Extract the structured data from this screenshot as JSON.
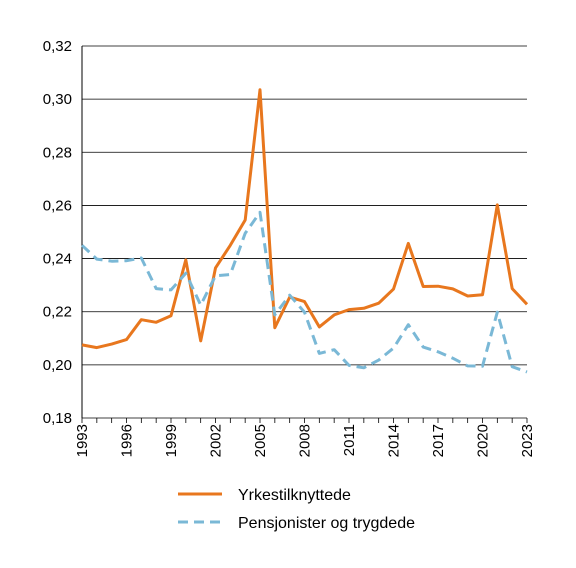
{
  "chart_data": {
    "type": "line",
    "title": "",
    "xlabel": "",
    "ylabel": "",
    "x": [
      1993,
      1994,
      1995,
      1996,
      1997,
      1998,
      1999,
      2000,
      2001,
      2002,
      2003,
      2004,
      2005,
      2006,
      2007,
      2008,
      2009,
      2010,
      2011,
      2012,
      2013,
      2014,
      2015,
      2016,
      2017,
      2018,
      2019,
      2020,
      2021,
      2022,
      2023
    ],
    "xlim": [
      1993,
      2023
    ],
    "ylim": [
      0.18,
      0.32
    ],
    "y_ticks": [
      {
        "value": 0.18,
        "label": "0,18"
      },
      {
        "value": 0.2,
        "label": "0,20"
      },
      {
        "value": 0.22,
        "label": "0,22"
      },
      {
        "value": 0.24,
        "label": "0,24"
      },
      {
        "value": 0.26,
        "label": "0,26"
      },
      {
        "value": 0.28,
        "label": "0,28"
      },
      {
        "value": 0.3,
        "label": "0,30"
      },
      {
        "value": 0.32,
        "label": "0,32"
      }
    ],
    "x_tick_labels": [
      "1993",
      "1996",
      "1999",
      "2002",
      "2005",
      "2008",
      "2011",
      "2014",
      "2017",
      "2020",
      "2023"
    ],
    "grid": "horizontal",
    "legend_position": "bottom",
    "colors": {
      "series_1": "#e8771e",
      "series_2": "#7ab8d6"
    },
    "series": [
      {
        "name": "Yrkestilknyttede",
        "style": "solid",
        "values": [
          0.2075,
          0.2065,
          0.2078,
          0.2095,
          0.217,
          0.216,
          0.2185,
          0.2395,
          0.209,
          0.2365,
          0.245,
          0.2545,
          0.3035,
          0.214,
          0.2255,
          0.2238,
          0.2143,
          0.2188,
          0.2208,
          0.2213,
          0.2232,
          0.2285,
          0.2457,
          0.2295,
          0.2296,
          0.2286,
          0.2259,
          0.2264,
          0.2602,
          0.2287,
          0.2228
        ]
      },
      {
        "name": "Pensjonister og trygdede",
        "style": "dashed",
        "values": [
          0.245,
          0.2398,
          0.239,
          0.2392,
          0.2402,
          0.2287,
          0.2282,
          0.2345,
          0.2225,
          0.2335,
          0.234,
          0.2495,
          0.2574,
          0.2188,
          0.2262,
          0.2198,
          0.2043,
          0.2057,
          0.1998,
          0.1989,
          0.2018,
          0.2063,
          0.2151,
          0.2067,
          0.2049,
          0.2025,
          0.1996,
          0.1995,
          0.2198,
          0.1993,
          0.1973
        ]
      }
    ]
  }
}
